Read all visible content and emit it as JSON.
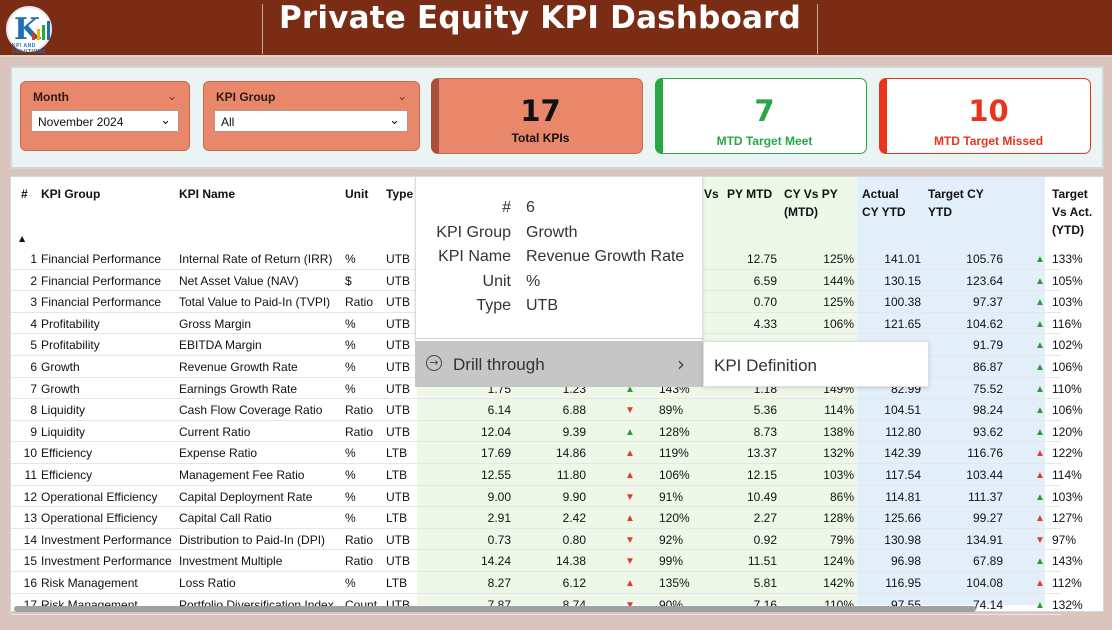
{
  "header": {
    "title": "Private Equity KPI Dashboard",
    "logo_text": "K",
    "logo_caption": "KPI AND SOLUTIONS"
  },
  "slicers": {
    "month": {
      "label": "Month",
      "value": "November 2024"
    },
    "kpi_group": {
      "label": "KPI Group",
      "value": "All"
    }
  },
  "cards": {
    "total": {
      "value": "17",
      "label": "Total KPIs",
      "color": "#e8876a"
    },
    "met": {
      "value": "7",
      "label": "MTD Target Meet",
      "color": "#28a745"
    },
    "missed": {
      "value": "10",
      "label": "MTD Target Missed",
      "color": "#e8341c"
    }
  },
  "table": {
    "headers": {
      "num": "#",
      "group": "KPI Group",
      "name": "KPI Name",
      "unit": "Unit",
      "type": "Type",
      "vs_partial": "Vs",
      "py_mtd": "PY MTD",
      "cy_vs_py_1": "CY Vs PY",
      "cy_vs_py_2": "(MTD)",
      "actual_1": "Actual",
      "actual_2": "CY YTD",
      "target_1": "Target CY",
      "target_2": "YTD",
      "tva_1": "Target",
      "tva_2": "Vs Act.",
      "tva_3": "(YTD)"
    },
    "rows": [
      {
        "n": "1",
        "group": "Financial Performance",
        "name": "Internal Rate of Return (IRR)",
        "unit": "%",
        "type": "UTB",
        "a": "",
        "b": "",
        "arr": "",
        "pct": "",
        "py": "12.75",
        "cyvpy": "125%",
        "act": "141.01",
        "tgt": "105.76",
        "arr2": "▲",
        "arr2c": "up",
        "pct2": "133%"
      },
      {
        "n": "2",
        "group": "Financial Performance",
        "name": "Net Asset Value (NAV)",
        "unit": "$",
        "type": "UTB",
        "a": "",
        "b": "",
        "arr": "",
        "pct": "",
        "py": "6.59",
        "cyvpy": "144%",
        "act": "130.15",
        "tgt": "123.64",
        "arr2": "▲",
        "arr2c": "up",
        "pct2": "105%"
      },
      {
        "n": "3",
        "group": "Financial Performance",
        "name": "Total Value to Paid-In (TVPI)",
        "unit": "Ratio",
        "type": "UTB",
        "a": "",
        "b": "",
        "arr": "",
        "pct": "",
        "py": "0.70",
        "cyvpy": "125%",
        "act": "100.38",
        "tgt": "97.37",
        "arr2": "▲",
        "arr2c": "up",
        "pct2": "103%"
      },
      {
        "n": "4",
        "group": "Profitability",
        "name": "Gross Margin",
        "unit": "%",
        "type": "UTB",
        "a": "",
        "b": "",
        "arr": "",
        "pct": "",
        "py": "4.33",
        "cyvpy": "106%",
        "act": "121.65",
        "tgt": "104.62",
        "arr2": "▲",
        "arr2c": "up",
        "pct2": "116%"
      },
      {
        "n": "5",
        "group": "Profitability",
        "name": "EBITDA Margin",
        "unit": "%",
        "type": "UTB",
        "a": "",
        "b": "",
        "arr": "",
        "pct": "",
        "py": "",
        "cyvpy": "",
        "act": "",
        "tgt": "91.79",
        "arr2": "▲",
        "arr2c": "up",
        "pct2": "102%"
      },
      {
        "n": "6",
        "group": "Growth",
        "name": "Revenue Growth Rate",
        "unit": "%",
        "type": "UTB",
        "a": "",
        "b": "",
        "arr": "",
        "pct": "",
        "py": "",
        "cyvpy": "",
        "act": "",
        "tgt": "86.87",
        "arr2": "▲",
        "arr2c": "up",
        "pct2": "106%"
      },
      {
        "n": "7",
        "group": "Growth",
        "name": "Earnings Growth Rate",
        "unit": "%",
        "type": "UTB",
        "a": "1.75",
        "b": "1.23",
        "arr": "▲",
        "arrc": "up",
        "pct": "143%",
        "py": "1.18",
        "cyvpy": "149%",
        "act": "82.99",
        "tgt": "75.52",
        "arr2": "▲",
        "arr2c": "up",
        "pct2": "110%"
      },
      {
        "n": "8",
        "group": "Liquidity",
        "name": "Cash Flow Coverage Ratio",
        "unit": "Ratio",
        "type": "UTB",
        "a": "6.14",
        "b": "6.88",
        "arr": "▼",
        "arrc": "dn",
        "pct": "89%",
        "py": "5.36",
        "cyvpy": "114%",
        "act": "104.51",
        "tgt": "98.24",
        "arr2": "▲",
        "arr2c": "up",
        "pct2": "106%"
      },
      {
        "n": "9",
        "group": "Liquidity",
        "name": "Current Ratio",
        "unit": "Ratio",
        "type": "UTB",
        "a": "12.04",
        "b": "9.39",
        "arr": "▲",
        "arrc": "up",
        "pct": "128%",
        "py": "8.73",
        "cyvpy": "138%",
        "act": "112.80",
        "tgt": "93.62",
        "arr2": "▲",
        "arr2c": "up",
        "pct2": "120%"
      },
      {
        "n": "10",
        "group": "Efficiency",
        "name": "Expense Ratio",
        "unit": "%",
        "type": "LTB",
        "a": "17.69",
        "b": "14.86",
        "arr": "▲",
        "arrc": "upr",
        "pct": "119%",
        "py": "13.37",
        "cyvpy": "132%",
        "act": "142.39",
        "tgt": "116.76",
        "arr2": "▲",
        "arr2c": "upr",
        "pct2": "122%"
      },
      {
        "n": "11",
        "group": "Efficiency",
        "name": "Management Fee Ratio",
        "unit": "%",
        "type": "LTB",
        "a": "12.55",
        "b": "11.80",
        "arr": "▲",
        "arrc": "upr",
        "pct": "106%",
        "py": "12.15",
        "cyvpy": "103%",
        "act": "117.54",
        "tgt": "103.44",
        "arr2": "▲",
        "arr2c": "upr",
        "pct2": "114%"
      },
      {
        "n": "12",
        "group": "Operational Efficiency",
        "name": "Capital Deployment Rate",
        "unit": "%",
        "type": "UTB",
        "a": "9.00",
        "b": "9.90",
        "arr": "▼",
        "arrc": "dn",
        "pct": "91%",
        "py": "10.49",
        "cyvpy": "86%",
        "act": "114.81",
        "tgt": "111.37",
        "arr2": "▲",
        "arr2c": "up",
        "pct2": "103%"
      },
      {
        "n": "13",
        "group": "Operational Efficiency",
        "name": "Capital Call Ratio",
        "unit": "%",
        "type": "LTB",
        "a": "2.91",
        "b": "2.42",
        "arr": "▲",
        "arrc": "upr",
        "pct": "120%",
        "py": "2.27",
        "cyvpy": "128%",
        "act": "125.66",
        "tgt": "99.27",
        "arr2": "▲",
        "arr2c": "upr",
        "pct2": "127%"
      },
      {
        "n": "14",
        "group": "Investment Performance",
        "name": "Distribution to Paid-In (DPI)",
        "unit": "Ratio",
        "type": "UTB",
        "a": "0.73",
        "b": "0.80",
        "arr": "▼",
        "arrc": "dn",
        "pct": "92%",
        "py": "0.92",
        "cyvpy": "79%",
        "act": "130.98",
        "tgt": "134.91",
        "arr2": "▼",
        "arr2c": "dn",
        "pct2": "97%"
      },
      {
        "n": "15",
        "group": "Investment Performance",
        "name": "Investment Multiple",
        "unit": "Ratio",
        "type": "UTB",
        "a": "14.24",
        "b": "14.38",
        "arr": "▼",
        "arrc": "dn",
        "pct": "99%",
        "py": "11.51",
        "cyvpy": "124%",
        "act": "96.98",
        "tgt": "67.89",
        "arr2": "▲",
        "arr2c": "up",
        "pct2": "143%"
      },
      {
        "n": "16",
        "group": "Risk Management",
        "name": "Loss Ratio",
        "unit": "%",
        "type": "LTB",
        "a": "8.27",
        "b": "6.12",
        "arr": "▲",
        "arrc": "upr",
        "pct": "135%",
        "py": "5.81",
        "cyvpy": "142%",
        "act": "116.95",
        "tgt": "104.08",
        "arr2": "▲",
        "arr2c": "upr",
        "pct2": "112%"
      },
      {
        "n": "17",
        "group": "Risk Management",
        "name": "Portfolio Diversification Index",
        "unit": "Count",
        "type": "UTB",
        "a": "7.87",
        "b": "8.74",
        "arr": "▼",
        "arrc": "dn",
        "pct": "90%",
        "py": "7.16",
        "cyvpy": "110%",
        "act": "97.55",
        "tgt": "74.14",
        "arr2": "▲",
        "arr2c": "up",
        "pct2": "132%"
      }
    ]
  },
  "tooltip": {
    "fields": [
      {
        "k": "#",
        "v": "6"
      },
      {
        "k": "KPI Group",
        "v": "Growth"
      },
      {
        "k": "KPI Name",
        "v": "Revenue Growth Rate"
      },
      {
        "k": "Unit",
        "v": "%"
      },
      {
        "k": "Type",
        "v": "UTB"
      }
    ],
    "drill_label": "Drill through",
    "submenu_item": "KPI Definition"
  }
}
